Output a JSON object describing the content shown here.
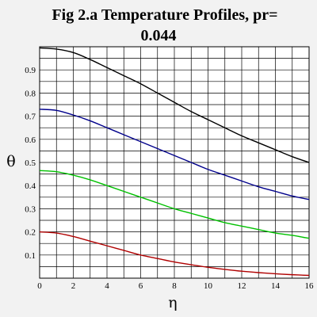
{
  "chart_data": {
    "type": "line",
    "title_line1": "Fig 2.a  Temperature Profiles, pr=",
    "title_line2": "0.044",
    "xlabel": "η",
    "ylabel": "θ",
    "xlim": [
      0,
      16
    ],
    "ylim": [
      0,
      1
    ],
    "x_ticks": [
      "0",
      "2",
      "4",
      "6",
      "8",
      "10",
      "12",
      "14",
      "16"
    ],
    "y_ticks": [
      "0.1",
      "0.2",
      "0.3",
      "0.4",
      "0.5",
      "0.6",
      "0.7",
      "0.8",
      "0.9"
    ],
    "grid": true,
    "x": [
      0,
      1,
      2,
      3,
      4,
      5,
      6,
      7,
      8,
      9,
      10,
      11,
      12,
      13,
      14,
      15,
      16
    ],
    "series": [
      {
        "color": "#000000",
        "values": [
          0.995,
          0.99,
          0.975,
          0.945,
          0.91,
          0.875,
          0.84,
          0.8,
          0.76,
          0.72,
          0.685,
          0.65,
          0.615,
          0.585,
          0.555,
          0.525,
          0.5
        ]
      },
      {
        "color": "#00008b",
        "values": [
          0.73,
          0.725,
          0.705,
          0.68,
          0.65,
          0.62,
          0.59,
          0.56,
          0.53,
          0.5,
          0.47,
          0.445,
          0.42,
          0.395,
          0.375,
          0.355,
          0.34
        ]
      },
      {
        "color": "#00c000",
        "values": [
          0.465,
          0.46,
          0.445,
          0.425,
          0.4,
          0.375,
          0.35,
          0.325,
          0.3,
          0.28,
          0.26,
          0.24,
          0.225,
          0.21,
          0.195,
          0.185,
          0.172
        ]
      },
      {
        "color": "#b00000",
        "values": [
          0.2,
          0.195,
          0.18,
          0.16,
          0.14,
          0.12,
          0.1,
          0.085,
          0.07,
          0.058,
          0.047,
          0.038,
          0.03,
          0.024,
          0.019,
          0.015,
          0.012
        ]
      }
    ]
  }
}
